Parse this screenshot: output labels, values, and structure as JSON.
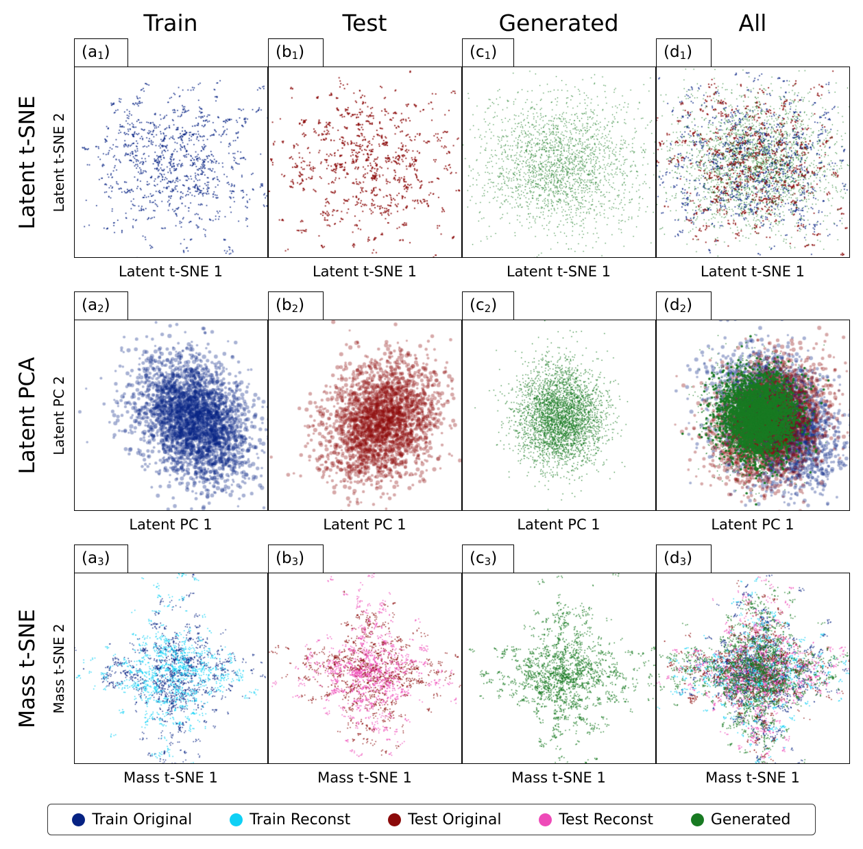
{
  "columns": [
    "Train",
    "Test",
    "Generated",
    "All"
  ],
  "rows": [
    {
      "title": "Latent t-SNE",
      "ylabel": "Latent t-SNE 2",
      "xlabel": "Latent t-SNE 1"
    },
    {
      "title": "Latent PCA",
      "ylabel": "Latent PC 2",
      "xlabel": "Latent PC 1"
    },
    {
      "title": "Mass t-SNE",
      "ylabel": "Mass t-SNE 2",
      "xlabel": "Mass t-SNE 1"
    }
  ],
  "panel_tags": [
    [
      {
        "letter": "a",
        "index": "1"
      },
      {
        "letter": "b",
        "index": "1"
      },
      {
        "letter": "c",
        "index": "1"
      },
      {
        "letter": "d",
        "index": "1"
      }
    ],
    [
      {
        "letter": "a",
        "index": "2"
      },
      {
        "letter": "b",
        "index": "2"
      },
      {
        "letter": "c",
        "index": "2"
      },
      {
        "letter": "d",
        "index": "2"
      }
    ],
    [
      {
        "letter": "a",
        "index": "3"
      },
      {
        "letter": "b",
        "index": "3"
      },
      {
        "letter": "c",
        "index": "3"
      },
      {
        "letter": "d",
        "index": "3"
      }
    ]
  ],
  "legend": [
    {
      "label": "Train Original",
      "color": "#062283"
    },
    {
      "label": "Train Reconst",
      "color": "#0fd0f5"
    },
    {
      "label": "Test Original",
      "color": "#8b0a0a"
    },
    {
      "label": "Test Reconst",
      "color": "#ee4ab8"
    },
    {
      "label": "Generated",
      "color": "#187a22"
    }
  ],
  "chart_data": {
    "type": "scatter",
    "grid": false,
    "axis_ticks": false,
    "legend_position": "bottom",
    "note": "Scatter coordinates are not readable from the figure (no axis ticks); marks are a qualitative reconstruction of the point clouds.",
    "panels": [
      {
        "row": "Latent t-SNE",
        "column": "Train",
        "series": [
          "Train Original"
        ],
        "xlabel": "Latent t-SNE 1",
        "ylabel": "Latent t-SNE 2",
        "shape": "tsne",
        "xlim": [
          -1,
          1
        ],
        "ylim": [
          -1,
          1
        ]
      },
      {
        "row": "Latent t-SNE",
        "column": "Test",
        "series": [
          "Test Original"
        ],
        "xlabel": "Latent t-SNE 1",
        "ylabel": "Latent t-SNE 2",
        "shape": "tsne",
        "xlim": [
          -1,
          1
        ],
        "ylim": [
          -1,
          1
        ]
      },
      {
        "row": "Latent t-SNE",
        "column": "Generated",
        "series": [
          "Generated"
        ],
        "xlabel": "Latent t-SNE 1",
        "ylabel": "Latent t-SNE 2",
        "shape": "tsne",
        "xlim": [
          -1,
          1
        ],
        "ylim": [
          -1,
          1
        ]
      },
      {
        "row": "Latent t-SNE",
        "column": "All",
        "series": [
          "Train Original",
          "Test Original",
          "Generated"
        ],
        "xlabel": "Latent t-SNE 1",
        "ylabel": "Latent t-SNE 2",
        "shape": "tsne",
        "xlim": [
          -1,
          1
        ],
        "ylim": [
          -1,
          1
        ]
      },
      {
        "row": "Latent PCA",
        "column": "Train",
        "series": [
          "Train Original"
        ],
        "xlabel": "Latent PC 1",
        "ylabel": "Latent PC 2",
        "shape": "pca",
        "xlim": [
          -1,
          1
        ],
        "ylim": [
          -1,
          1
        ]
      },
      {
        "row": "Latent PCA",
        "column": "Test",
        "series": [
          "Test Original"
        ],
        "xlabel": "Latent PC 1",
        "ylabel": "Latent PC 2",
        "shape": "pca",
        "xlim": [
          -1,
          1
        ],
        "ylim": [
          -1,
          1
        ]
      },
      {
        "row": "Latent PCA",
        "column": "Generated",
        "series": [
          "Generated"
        ],
        "xlabel": "Latent PC 1",
        "ylabel": "Latent PC 2",
        "shape": "gaussian",
        "xlim": [
          -1,
          1
        ],
        "ylim": [
          -1,
          1
        ]
      },
      {
        "row": "Latent PCA",
        "column": "All",
        "series": [
          "Train Original",
          "Test Original",
          "Generated"
        ],
        "xlabel": "Latent PC 1",
        "ylabel": "Latent PC 2",
        "shape": "pca",
        "xlim": [
          -1,
          1
        ],
        "ylim": [
          -1,
          1
        ]
      },
      {
        "row": "Mass t-SNE",
        "column": "Train",
        "series": [
          "Train Original",
          "Train Reconst"
        ],
        "xlabel": "Mass t-SNE 1",
        "ylabel": "Mass t-SNE 2",
        "shape": "mass",
        "xlim": [
          -1,
          1
        ],
        "ylim": [
          -1,
          1
        ]
      },
      {
        "row": "Mass t-SNE",
        "column": "Test",
        "series": [
          "Test Original",
          "Test Reconst"
        ],
        "xlabel": "Mass t-SNE 1",
        "ylabel": "Mass t-SNE 2",
        "shape": "mass",
        "xlim": [
          -1,
          1
        ],
        "ylim": [
          -1,
          1
        ]
      },
      {
        "row": "Mass t-SNE",
        "column": "Generated",
        "series": [
          "Generated"
        ],
        "xlabel": "Mass t-SNE 1",
        "ylabel": "Mass t-SNE 2",
        "shape": "mass",
        "xlim": [
          -1,
          1
        ],
        "ylim": [
          -1,
          1
        ]
      },
      {
        "row": "Mass t-SNE",
        "column": "All",
        "series": [
          "Train Original",
          "Train Reconst",
          "Test Original",
          "Test Reconst",
          "Generated"
        ],
        "xlabel": "Mass t-SNE 1",
        "ylabel": "Mass t-SNE 2",
        "shape": "mass",
        "xlim": [
          -1,
          1
        ],
        "ylim": [
          -1,
          1
        ]
      }
    ]
  }
}
